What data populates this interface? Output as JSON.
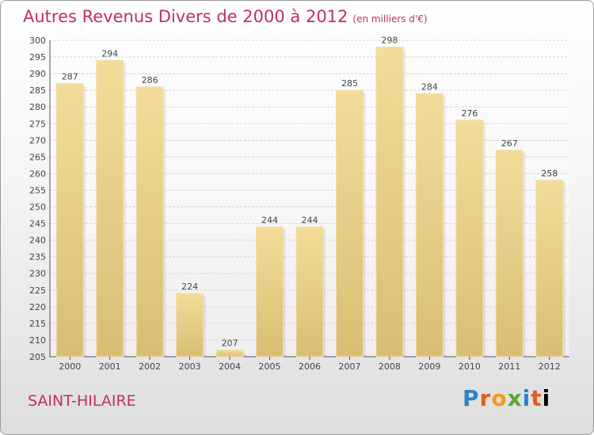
{
  "chart_data": {
    "type": "bar",
    "title": "Autres Revenus Divers de 2000 à 2012",
    "unit": "(en milliers d'€)",
    "categories": [
      "2000",
      "2001",
      "2002",
      "2003",
      "2004",
      "2005",
      "2006",
      "2007",
      "2008",
      "2009",
      "2010",
      "2011",
      "2012"
    ],
    "values": [
      287,
      294,
      286,
      224,
      207,
      244,
      244,
      285,
      298,
      284,
      276,
      267,
      258
    ],
    "ylim": [
      205,
      300
    ],
    "yticks": [
      205,
      210,
      215,
      220,
      225,
      230,
      235,
      240,
      245,
      250,
      255,
      260,
      265,
      270,
      275,
      280,
      285,
      290,
      295,
      300
    ],
    "grid": true,
    "legend": "none"
  },
  "place": "SAINT-HILAIRE",
  "logo": "Proxiti",
  "colors": {
    "title": "#c0305a",
    "bar_light": "#f4dc98",
    "bar_dark": "#d9bd74"
  }
}
